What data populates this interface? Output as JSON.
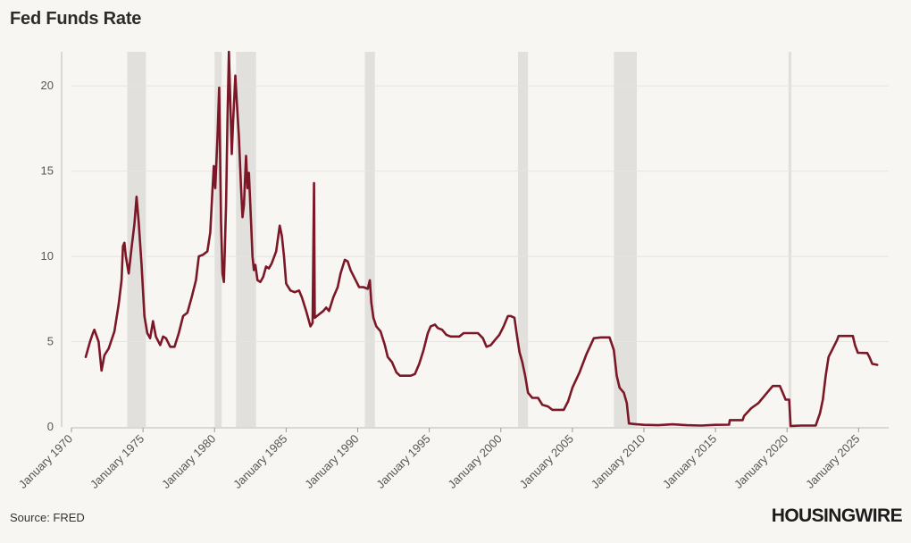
{
  "title": "Fed Funds Rate",
  "source": "Source: FRED",
  "logo_text": "HOUSINGWIRE",
  "colors": {
    "line": "#7b1726",
    "recession": "#e2e0dd",
    "grid": "#e6e4e0",
    "background": "#f7f6f2"
  },
  "chart_data": {
    "type": "line",
    "title": "Fed Funds Rate",
    "xlabel": "",
    "ylabel": "",
    "grid": true,
    "xlim": [
      1970,
      2027.1
    ],
    "ylim": [
      0,
      22
    ],
    "yticks": [
      0,
      5,
      10,
      15,
      20
    ],
    "xticks": [
      {
        "value": 1970,
        "label": "January 1970"
      },
      {
        "value": 1975,
        "label": "January 1975"
      },
      {
        "value": 1980,
        "label": "January 1980"
      },
      {
        "value": 1985,
        "label": "January 1985"
      },
      {
        "value": 1990,
        "label": "January 1990"
      },
      {
        "value": 1995,
        "label": "January 1995"
      },
      {
        "value": 2000,
        "label": "January 2000"
      },
      {
        "value": 2005,
        "label": "January 2005"
      },
      {
        "value": 2010,
        "label": "January 2010"
      },
      {
        "value": 2015,
        "label": "January 2015"
      },
      {
        "value": 2020,
        "label": "January 2020"
      },
      {
        "value": 2025,
        "label": "January 2025"
      }
    ],
    "recessions": [
      [
        1973.9,
        1975.2
      ],
      [
        1980.0,
        1980.5
      ],
      [
        1981.5,
        1982.9
      ],
      [
        1990.5,
        1991.2
      ],
      [
        2001.2,
        2001.9
      ],
      [
        2007.9,
        2009.5
      ],
      [
        2020.1,
        2020.3
      ]
    ],
    "series": [
      {
        "points": [
          [
            1971.0,
            4.1
          ],
          [
            1971.3,
            5.0
          ],
          [
            1971.5,
            5.5
          ],
          [
            1971.6,
            5.7
          ],
          [
            1971.9,
            5.0
          ],
          [
            1972.1,
            3.3
          ],
          [
            1972.3,
            4.2
          ],
          [
            1972.6,
            4.6
          ],
          [
            1972.8,
            5.1
          ],
          [
            1973.0,
            5.6
          ],
          [
            1973.3,
            7.2
          ],
          [
            1973.5,
            8.6
          ],
          [
            1973.6,
            10.6
          ],
          [
            1973.7,
            10.8
          ],
          [
            1973.8,
            10.0
          ],
          [
            1974.0,
            9.0
          ],
          [
            1974.2,
            10.5
          ],
          [
            1974.4,
            11.9
          ],
          [
            1974.55,
            13.5
          ],
          [
            1974.7,
            12.0
          ],
          [
            1974.9,
            9.5
          ],
          [
            1975.1,
            6.5
          ],
          [
            1975.3,
            5.5
          ],
          [
            1975.5,
            5.2
          ],
          [
            1975.7,
            6.2
          ],
          [
            1975.9,
            5.3
          ],
          [
            1976.2,
            4.8
          ],
          [
            1976.4,
            5.3
          ],
          [
            1976.6,
            5.2
          ],
          [
            1976.9,
            4.7
          ],
          [
            1977.2,
            4.7
          ],
          [
            1977.5,
            5.5
          ],
          [
            1977.8,
            6.5
          ],
          [
            1978.1,
            6.7
          ],
          [
            1978.4,
            7.6
          ],
          [
            1978.7,
            8.6
          ],
          [
            1978.9,
            10.0
          ],
          [
            1979.2,
            10.1
          ],
          [
            1979.5,
            10.3
          ],
          [
            1979.7,
            11.4
          ],
          [
            1979.85,
            13.8
          ],
          [
            1979.95,
            15.3
          ],
          [
            1980.05,
            14.0
          ],
          [
            1980.2,
            17.0
          ],
          [
            1980.32,
            19.9
          ],
          [
            1980.45,
            12.0
          ],
          [
            1980.55,
            9.0
          ],
          [
            1980.65,
            8.5
          ],
          [
            1980.8,
            13.0
          ],
          [
            1980.9,
            18.0
          ],
          [
            1981.0,
            22.0
          ],
          [
            1981.1,
            19.0
          ],
          [
            1981.2,
            16.0
          ],
          [
            1981.3,
            18.0
          ],
          [
            1981.45,
            20.6
          ],
          [
            1981.55,
            19.1
          ],
          [
            1981.7,
            17.0
          ],
          [
            1981.85,
            14.0
          ],
          [
            1981.95,
            12.3
          ],
          [
            1982.05,
            13.0
          ],
          [
            1982.2,
            15.9
          ],
          [
            1982.3,
            14.0
          ],
          [
            1982.4,
            14.9
          ],
          [
            1982.55,
            12.0
          ],
          [
            1982.65,
            10.0
          ],
          [
            1982.75,
            9.2
          ],
          [
            1982.85,
            9.5
          ],
          [
            1983.0,
            8.6
          ],
          [
            1983.2,
            8.5
          ],
          [
            1983.4,
            8.8
          ],
          [
            1983.6,
            9.4
          ],
          [
            1983.8,
            9.3
          ],
          [
            1984.0,
            9.6
          ],
          [
            1984.3,
            10.3
          ],
          [
            1984.55,
            11.8
          ],
          [
            1984.7,
            11.2
          ],
          [
            1984.85,
            10.0
          ],
          [
            1985.0,
            8.4
          ],
          [
            1985.3,
            8.0
          ],
          [
            1985.6,
            7.9
          ],
          [
            1985.9,
            8.0
          ],
          [
            1986.1,
            7.6
          ],
          [
            1986.4,
            6.8
          ],
          [
            1986.7,
            5.9
          ],
          [
            1986.85,
            6.1
          ],
          [
            1986.95,
            14.3
          ],
          [
            1987.0,
            6.4
          ],
          [
            1987.3,
            6.6
          ],
          [
            1987.6,
            6.8
          ],
          [
            1987.8,
            7.0
          ],
          [
            1988.0,
            6.8
          ],
          [
            1988.3,
            7.6
          ],
          [
            1988.6,
            8.2
          ],
          [
            1988.8,
            9.0
          ],
          [
            1989.1,
            9.8
          ],
          [
            1989.3,
            9.7
          ],
          [
            1989.5,
            9.2
          ],
          [
            1989.8,
            8.7
          ],
          [
            1990.1,
            8.2
          ],
          [
            1990.4,
            8.2
          ],
          [
            1990.7,
            8.1
          ],
          [
            1990.85,
            8.6
          ],
          [
            1990.95,
            7.3
          ],
          [
            1991.1,
            6.4
          ],
          [
            1991.3,
            5.9
          ],
          [
            1991.6,
            5.6
          ],
          [
            1991.9,
            4.8
          ],
          [
            1992.1,
            4.1
          ],
          [
            1992.4,
            3.8
          ],
          [
            1992.7,
            3.2
          ],
          [
            1992.95,
            3.0
          ],
          [
            1993.3,
            3.0
          ],
          [
            1993.7,
            3.0
          ],
          [
            1994.0,
            3.1
          ],
          [
            1994.3,
            3.7
          ],
          [
            1994.6,
            4.5
          ],
          [
            1994.9,
            5.5
          ],
          [
            1995.1,
            5.9
          ],
          [
            1995.4,
            6.0
          ],
          [
            1995.6,
            5.8
          ],
          [
            1995.9,
            5.7
          ],
          [
            1996.2,
            5.4
          ],
          [
            1996.5,
            5.3
          ],
          [
            1996.8,
            5.3
          ],
          [
            1997.1,
            5.3
          ],
          [
            1997.4,
            5.5
          ],
          [
            1997.7,
            5.5
          ],
          [
            1998.0,
            5.5
          ],
          [
            1998.4,
            5.5
          ],
          [
            1998.75,
            5.2
          ],
          [
            1999.0,
            4.7
          ],
          [
            1999.3,
            4.8
          ],
          [
            1999.6,
            5.1
          ],
          [
            1999.9,
            5.4
          ],
          [
            2000.2,
            5.9
          ],
          [
            2000.5,
            6.5
          ],
          [
            2000.7,
            6.5
          ],
          [
            2000.95,
            6.4
          ],
          [
            2001.1,
            5.5
          ],
          [
            2001.3,
            4.4
          ],
          [
            2001.5,
            3.8
          ],
          [
            2001.7,
            3.0
          ],
          [
            2001.9,
            2.0
          ],
          [
            2002.2,
            1.7
          ],
          [
            2002.6,
            1.7
          ],
          [
            2002.9,
            1.3
          ],
          [
            2003.3,
            1.2
          ],
          [
            2003.6,
            1.0
          ],
          [
            2004.0,
            1.0
          ],
          [
            2004.4,
            1.0
          ],
          [
            2004.7,
            1.5
          ],
          [
            2005.0,
            2.3
          ],
          [
            2005.5,
            3.2
          ],
          [
            2006.0,
            4.3
          ],
          [
            2006.5,
            5.2
          ],
          [
            2007.0,
            5.25
          ],
          [
            2007.6,
            5.25
          ],
          [
            2007.9,
            4.5
          ],
          [
            2008.1,
            3.0
          ],
          [
            2008.3,
            2.3
          ],
          [
            2008.6,
            2.0
          ],
          [
            2008.8,
            1.4
          ],
          [
            2008.95,
            0.2
          ],
          [
            2009.5,
            0.15
          ],
          [
            2010.0,
            0.12
          ],
          [
            2011.0,
            0.1
          ],
          [
            2012.0,
            0.15
          ],
          [
            2013.0,
            0.1
          ],
          [
            2014.0,
            0.08
          ],
          [
            2015.0,
            0.12
          ],
          [
            2015.95,
            0.13
          ],
          [
            2016.0,
            0.4
          ],
          [
            2016.9,
            0.4
          ],
          [
            2017.0,
            0.65
          ],
          [
            2017.5,
            1.1
          ],
          [
            2018.0,
            1.4
          ],
          [
            2018.5,
            1.9
          ],
          [
            2019.0,
            2.4
          ],
          [
            2019.5,
            2.4
          ],
          [
            2019.7,
            2.0
          ],
          [
            2019.9,
            1.6
          ],
          [
            2020.15,
            1.6
          ],
          [
            2020.25,
            0.05
          ],
          [
            2021.0,
            0.08
          ],
          [
            2022.0,
            0.08
          ],
          [
            2022.3,
            0.8
          ],
          [
            2022.5,
            1.6
          ],
          [
            2022.7,
            3.0
          ],
          [
            2022.9,
            4.1
          ],
          [
            2023.2,
            4.6
          ],
          [
            2023.5,
            5.1
          ],
          [
            2023.6,
            5.33
          ],
          [
            2024.0,
            5.33
          ],
          [
            2024.6,
            5.33
          ],
          [
            2024.75,
            4.8
          ],
          [
            2024.95,
            4.35
          ],
          [
            2025.6,
            4.33
          ],
          [
            2025.75,
            4.1
          ],
          [
            2025.95,
            3.7
          ],
          [
            2026.3,
            3.64
          ]
        ]
      }
    ]
  }
}
